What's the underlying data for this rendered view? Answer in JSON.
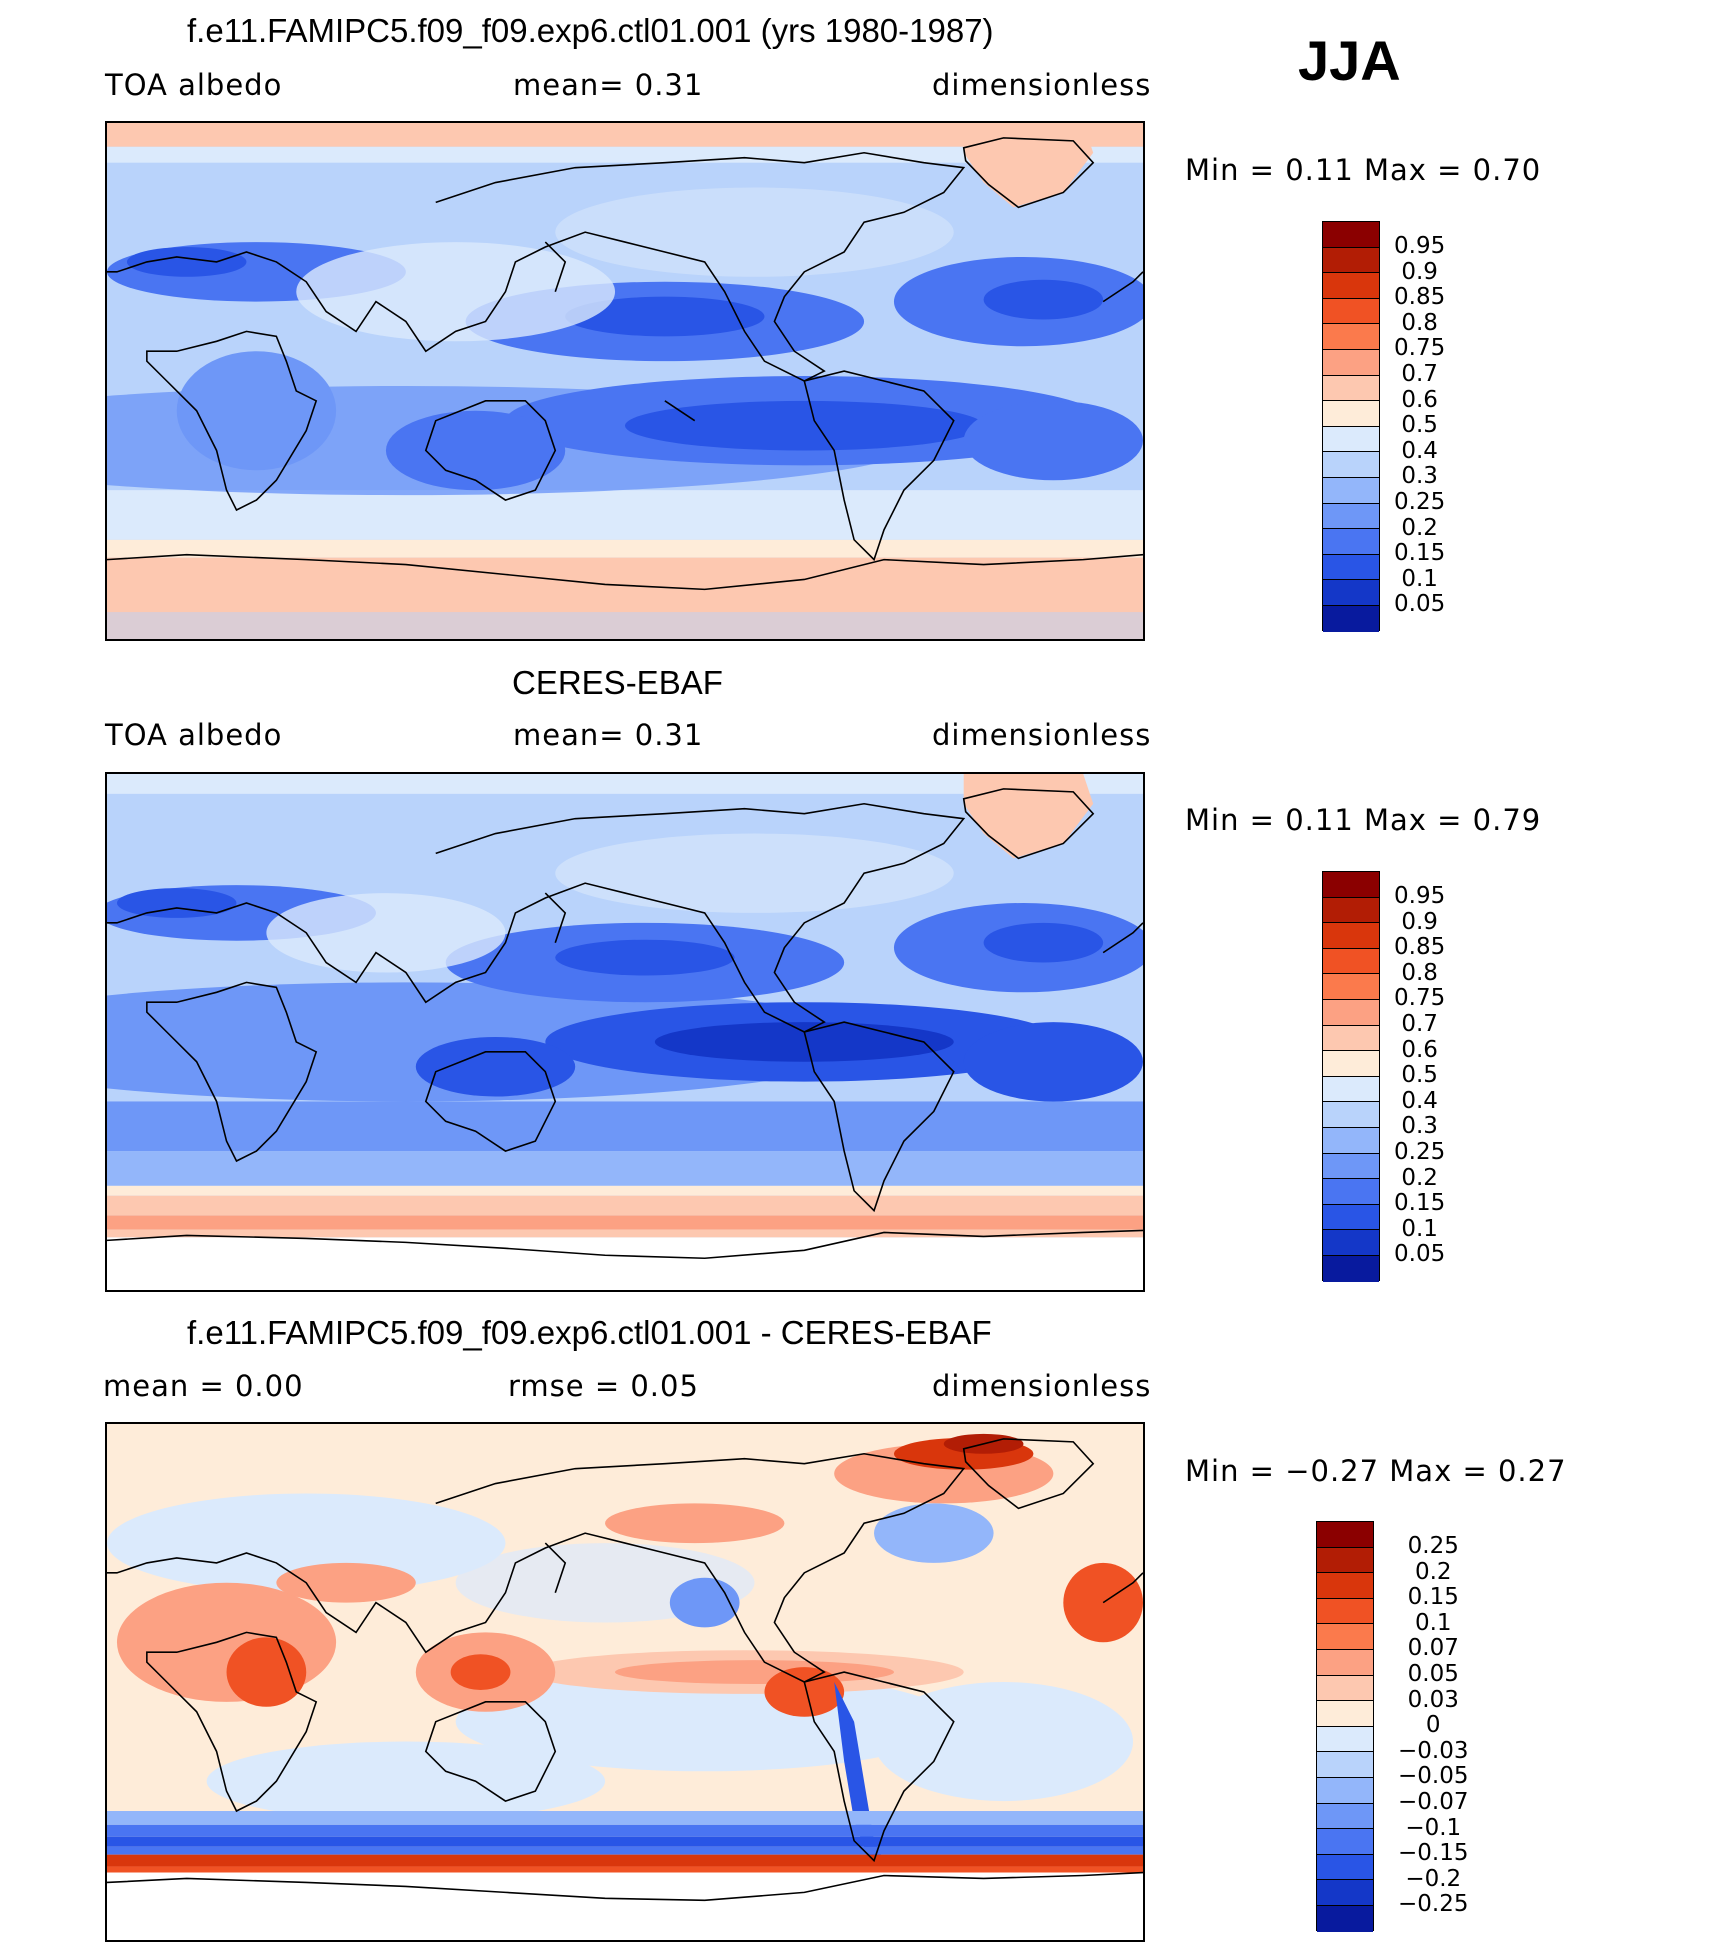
{
  "season": "JJA",
  "panels": [
    {
      "title": "f.e11.FAMIPC5.f09_f09.exp6.ctl01.001 (yrs 1980-1987)",
      "left": "TOA  albedo",
      "mid": "mean=     0.31",
      "right": "dimensionless",
      "minmax": "Min  =      0.11  Max  =      0.70",
      "levels": [
        "0.95",
        "0.9",
        "0.85",
        "0.8",
        "0.75",
        "0.7",
        "0.6",
        "0.5",
        "0.4",
        "0.3",
        "0.25",
        "0.2",
        "0.15",
        "0.1",
        "0.05"
      ]
    },
    {
      "title": "CERES-EBAF",
      "left": "TOA  albedo",
      "mid": "mean=     0.31",
      "right": "dimensionless",
      "minmax": "Min  =      0.11  Max  =      0.79",
      "levels": [
        "0.95",
        "0.9",
        "0.85",
        "0.8",
        "0.75",
        "0.7",
        "0.6",
        "0.5",
        "0.4",
        "0.3",
        "0.25",
        "0.2",
        "0.15",
        "0.1",
        "0.05"
      ]
    },
    {
      "title": "f.e11.FAMIPC5.f09_f09.exp6.ctl01.001 - CERES-EBAF",
      "left": "mean  =      0.00",
      "mid": "rmse  =      0.05",
      "right": "dimensionless",
      "minmax": "Min  =    −0.27  Max  =      0.27",
      "levels": [
        "0.25",
        "0.2",
        "0.15",
        "0.1",
        "0.07",
        "0.05",
        "0.03",
        "0",
        "−0.03",
        "−0.05",
        "−0.07",
        "−0.1",
        "−0.15",
        "−0.2",
        "−0.25"
      ]
    }
  ],
  "colors": {
    "abs_scale": [
      "#8b0000",
      "#b21d05",
      "#d9360c",
      "#f05224",
      "#fb7a4c",
      "#fca183",
      "#fdc8b0",
      "#feecd9",
      "#dbeafc",
      "#b9d3fb",
      "#93b6fa",
      "#6e97f7",
      "#4a75f2",
      "#2955e6",
      "#1437c8",
      "#081a9e"
    ],
    "diff_scale": [
      "#8b0000",
      "#b21d05",
      "#d9360c",
      "#f05224",
      "#fb7a4c",
      "#fca183",
      "#fdc8b0",
      "#feecd9",
      "#dbeafc",
      "#b9d3fb",
      "#93b6fa",
      "#6e97f7",
      "#4a75f2",
      "#2955e6",
      "#1437c8",
      "#081a9e"
    ]
  }
}
